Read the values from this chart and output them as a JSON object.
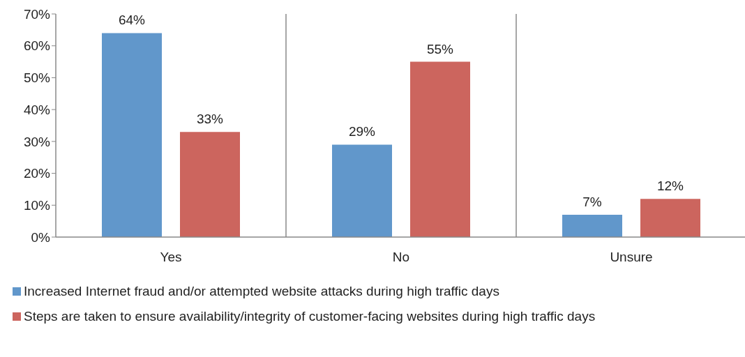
{
  "chart_data": {
    "type": "bar",
    "categories": [
      "Yes",
      "No",
      "Unsure"
    ],
    "series": [
      {
        "name": "Increased Internet fraud and/or attempted website attacks during high traffic days",
        "color": "#6197cb",
        "values": [
          64,
          29,
          7
        ],
        "value_labels": [
          "64%",
          "29%",
          "7%"
        ]
      },
      {
        "name": "Steps are taken to ensure availability/integrity of customer-facing websites during high traffic days",
        "color": "#cc655e",
        "values": [
          33,
          55,
          12
        ],
        "value_labels": [
          "33%",
          "55%",
          "12%"
        ]
      }
    ],
    "ylim": [
      0,
      70
    ],
    "yticks": [
      {
        "value": 0,
        "label": "0%"
      },
      {
        "value": 10,
        "label": "10%"
      },
      {
        "value": 20,
        "label": "20%"
      },
      {
        "value": 30,
        "label": "30%"
      },
      {
        "value": 40,
        "label": "40%"
      },
      {
        "value": 50,
        "label": "50%"
      },
      {
        "value": 60,
        "label": "60%"
      },
      {
        "value": 70,
        "label": "70%"
      }
    ],
    "grid": "x",
    "legend": "bottom"
  }
}
